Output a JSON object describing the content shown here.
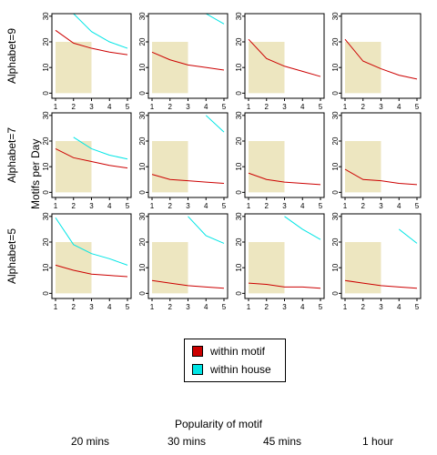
{
  "chart_data": {
    "type": "line",
    "xlabel": "Popularity of motif",
    "ylabel": "Motifs per Day",
    "x": [
      1,
      2,
      3,
      4,
      5
    ],
    "x_ticks": [
      "1",
      "2",
      "3",
      "4",
      "5"
    ],
    "y_ticks": [
      "0",
      "10",
      "20",
      "30"
    ],
    "ylim": [
      -2,
      31
    ],
    "xlim": [
      1,
      5
    ],
    "legend": {
      "position": "bottom-center",
      "entries": [
        {
          "label": "within motif",
          "color": "#cc0000"
        },
        {
          "label": "within house",
          "color": "#00e5e5"
        }
      ]
    },
    "rows": [
      "Alphabet=9",
      "Alphabet=7",
      "Alphabet=5"
    ],
    "columns": [
      "20 mins",
      "30 mins",
      "45 mins",
      "1 hour"
    ],
    "highlight_region": {
      "x": [
        1,
        3
      ],
      "y": [
        0,
        20
      ],
      "color": "#ede6c0"
    },
    "panels": [
      [
        {
          "within_motif": [
            24.5,
            19.5,
            17.5,
            16,
            15
          ],
          "within_house": [
            null,
            31,
            24,
            20,
            17.5
          ]
        },
        {
          "within_motif": [
            16,
            13,
            11,
            10,
            9
          ],
          "within_house": [
            null,
            null,
            null,
            31,
            27
          ]
        },
        {
          "within_motif": [
            21,
            13.5,
            10.5,
            8.5,
            6.5
          ],
          "within_house": [
            null,
            null,
            null,
            null,
            31
          ]
        },
        {
          "within_motif": [
            21,
            12.5,
            9.5,
            7,
            5.5
          ],
          "within_house": [
            null,
            null,
            null,
            null,
            null
          ]
        }
      ],
      [
        {
          "within_motif": [
            17,
            13.5,
            12,
            10.5,
            9.5
          ],
          "within_house": [
            null,
            21.5,
            17,
            14.5,
            13
          ]
        },
        {
          "within_motif": [
            7,
            5,
            4.5,
            4,
            3.5
          ],
          "within_house": [
            null,
            null,
            null,
            30,
            23.5
          ]
        },
        {
          "within_motif": [
            7.5,
            5,
            4,
            3.5,
            3
          ],
          "within_house": [
            null,
            null,
            null,
            null,
            28
          ]
        },
        {
          "within_motif": [
            9,
            5,
            4.5,
            3.5,
            3
          ],
          "within_house": [
            null,
            null,
            null,
            null,
            25
          ]
        }
      ],
      [
        {
          "within_motif": [
            11,
            9,
            7.5,
            7,
            6.5
          ],
          "within_house": [
            29.5,
            19,
            15.5,
            13.5,
            11
          ]
        },
        {
          "within_motif": [
            5,
            4,
            3,
            2.5,
            2
          ],
          "within_house": [
            null,
            null,
            30,
            22.5,
            19.5
          ]
        },
        {
          "within_motif": [
            4,
            3.5,
            2.5,
            2.5,
            2
          ],
          "within_house": [
            null,
            null,
            30,
            25,
            21
          ]
        },
        {
          "within_motif": [
            5,
            4,
            3,
            2.5,
            2
          ],
          "within_house": [
            null,
            null,
            null,
            25,
            19.5
          ]
        }
      ]
    ]
  }
}
